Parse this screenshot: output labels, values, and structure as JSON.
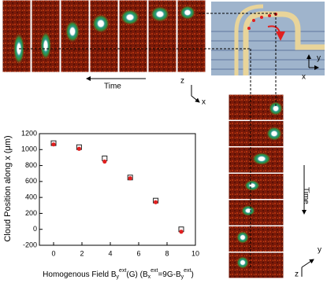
{
  "chart_data": {
    "type": "scatter",
    "ylabel": "Cloud Position along x (μm)",
    "xlabel": [
      "Homogenous Field B",
      "y",
      "ext",
      "(G)  (B",
      "x",
      "ext",
      "=9G-B",
      "y",
      "ext",
      ")"
    ],
    "x": [
      0,
      1.8,
      3.6,
      5.4,
      7.2,
      9
    ],
    "series": [
      {
        "color": "#222222",
        "marker": "open-square",
        "values": [
          1080,
          1030,
          890,
          650,
          360,
          0
        ]
      },
      {
        "color": "#e02020",
        "marker": "filled-circle",
        "values": [
          1075,
          1020,
          860,
          650,
          350,
          -20
        ]
      }
    ],
    "xlim": [
      -1,
      10
    ],
    "xticks": [
      0,
      2,
      4,
      6,
      8,
      10
    ],
    "ylim": [
      -200,
      1200
    ],
    "yticks": [
      -200,
      0,
      200,
      400,
      600,
      800,
      1000,
      1200
    ]
  },
  "annotations": {
    "time_top": "Time",
    "axis_z_mid": "z",
    "axis_x_mid": "x",
    "axis_y_schematic": "y",
    "axis_x_schematic": "x",
    "time_right": "Time",
    "axis_y_bottom": "y",
    "axis_z_bottom": "z"
  }
}
